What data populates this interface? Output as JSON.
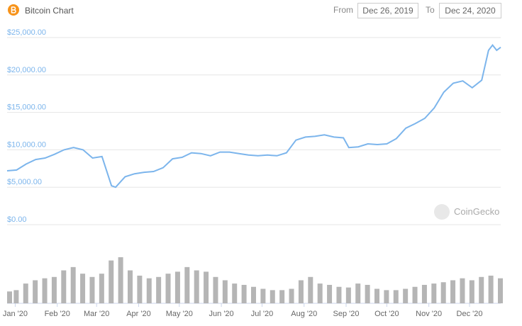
{
  "header": {
    "title": "Bitcoin Chart",
    "from_label": "From",
    "from_date": "Dec 26, 2019",
    "to_label": "To",
    "to_date": "Dec 24, 2020"
  },
  "watermark": "CoinGecko",
  "chart_data": {
    "type": "line",
    "color": "#7cb5ec",
    "grid": true,
    "x": [
      0,
      7,
      14,
      21,
      28,
      35,
      42,
      49,
      56,
      63,
      70,
      77,
      80,
      87,
      94,
      101,
      108,
      115,
      122,
      129,
      136,
      143,
      150,
      157,
      164,
      171,
      178,
      185,
      192,
      199,
      206,
      213,
      220,
      227,
      234,
      241,
      248,
      252,
      259,
      266,
      273,
      280,
      287,
      294,
      301,
      308,
      315,
      322,
      329,
      336,
      343,
      350,
      355,
      358,
      361,
      364
    ],
    "values": [
      7200,
      7300,
      8100,
      8700,
      8900,
      9400,
      10000,
      10300,
      10000,
      8900,
      9100,
      5200,
      5000,
      6400,
      6800,
      7000,
      7100,
      7600,
      8800,
      9000,
      9600,
      9500,
      9200,
      9700,
      9700,
      9500,
      9300,
      9200,
      9300,
      9200,
      9600,
      11300,
      11700,
      11800,
      12000,
      11700,
      11600,
      10300,
      10400,
      10800,
      10700,
      10800,
      11500,
      12900,
      13500,
      14200,
      15600,
      17700,
      18900,
      19200,
      18300,
      19300,
      23300,
      24000,
      23300,
      23700
    ],
    "xlim": [
      0,
      364
    ],
    "xticks": [
      {
        "value": 6,
        "label": "Jan '20"
      },
      {
        "value": 37,
        "label": "Feb '20"
      },
      {
        "value": 66,
        "label": "Mar '20"
      },
      {
        "value": 97,
        "label": "Apr '20"
      },
      {
        "value": 127,
        "label": "May '20"
      },
      {
        "value": 158,
        "label": "Jun '20"
      },
      {
        "value": 188,
        "label": "Jul '20"
      },
      {
        "value": 219,
        "label": "Aug '20"
      },
      {
        "value": 250,
        "label": "Sep '20"
      },
      {
        "value": 280,
        "label": "Oct '20"
      },
      {
        "value": 311,
        "label": "Nov '20"
      },
      {
        "value": 341,
        "label": "Dec '20"
      }
    ],
    "ylim": [
      0,
      25000
    ],
    "yticks": [
      {
        "value": 0,
        "label": "$0.00"
      },
      {
        "value": 5000,
        "label": "$5,000.00"
      },
      {
        "value": 10000,
        "label": "$10,000.00"
      },
      {
        "value": 15000,
        "label": "$15,000.00"
      },
      {
        "value": 20000,
        "label": "$20,000.00"
      },
      {
        "value": 25000,
        "label": "$25,000.00"
      }
    ],
    "volume": {
      "color": "#b5b5b5",
      "ylim": [
        0,
        100
      ],
      "x": [
        0,
        7,
        14,
        21,
        28,
        35,
        42,
        49,
        56,
        63,
        70,
        77,
        84,
        91,
        98,
        105,
        112,
        119,
        126,
        133,
        140,
        147,
        154,
        161,
        168,
        175,
        182,
        189,
        196,
        203,
        210,
        217,
        224,
        231,
        238,
        245,
        252,
        259,
        266,
        273,
        280,
        287,
        294,
        301,
        308,
        315,
        322,
        329,
        336,
        343,
        350,
        357,
        364
      ],
      "values": [
        18,
        20,
        30,
        35,
        38,
        40,
        50,
        55,
        45,
        40,
        45,
        65,
        70,
        50,
        42,
        38,
        40,
        45,
        48,
        55,
        50,
        48,
        40,
        35,
        30,
        28,
        25,
        22,
        20,
        20,
        22,
        35,
        40,
        30,
        28,
        25,
        24,
        30,
        28,
        22,
        20,
        20,
        22,
        25,
        28,
        30,
        32,
        35,
        38,
        35,
        40,
        42,
        38
      ]
    }
  }
}
